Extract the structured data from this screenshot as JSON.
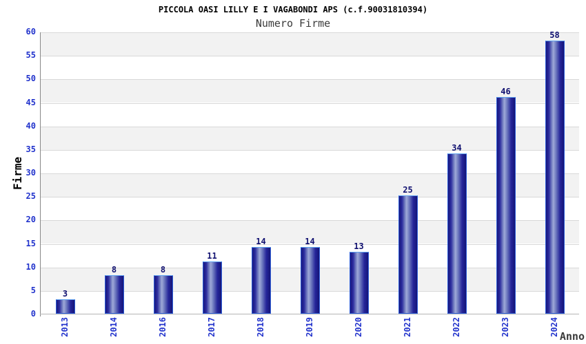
{
  "title": "PICCOLA OASI LILLY E I VAGABONDI APS (c.f.90031810394)",
  "subtitle": "Numero Firme",
  "chart_data": {
    "type": "bar",
    "categories": [
      "2013",
      "2014",
      "2016",
      "2017",
      "2018",
      "2019",
      "2020",
      "2021",
      "2022",
      "2023",
      "2024"
    ],
    "values": [
      3,
      8,
      8,
      11,
      14,
      14,
      13,
      25,
      34,
      46,
      58
    ],
    "title": "PICCOLA OASI LILLY E I VAGABONDI APS (c.f.90031810394)",
    "subtitle": "Numero Firme",
    "xlabel": "Anno",
    "ylabel": "Firme",
    "ylim": [
      0,
      60
    ],
    "ytick_step": 5,
    "yticks": [
      0,
      5,
      10,
      15,
      20,
      25,
      30,
      35,
      40,
      45,
      50,
      55,
      60
    ],
    "grid": true,
    "legend": false,
    "bands_alternating": true
  },
  "colors": {
    "title_color": "#000000",
    "subtitle_color": "#3a3a3a",
    "tick_label": "#2233cc",
    "value_label": "#101070",
    "bar_edge_dark": "#18187f",
    "bar_highlight": "#9fa9d8",
    "bar_border": "#2e5ed8",
    "bar_border_top": "#5ea2f0",
    "band_gray": "#f2f2f2",
    "band_white": "#ffffff",
    "grid_line": "#d8d8d8",
    "axis_y": "#888888",
    "axis_x": "#b4b4b4"
  }
}
